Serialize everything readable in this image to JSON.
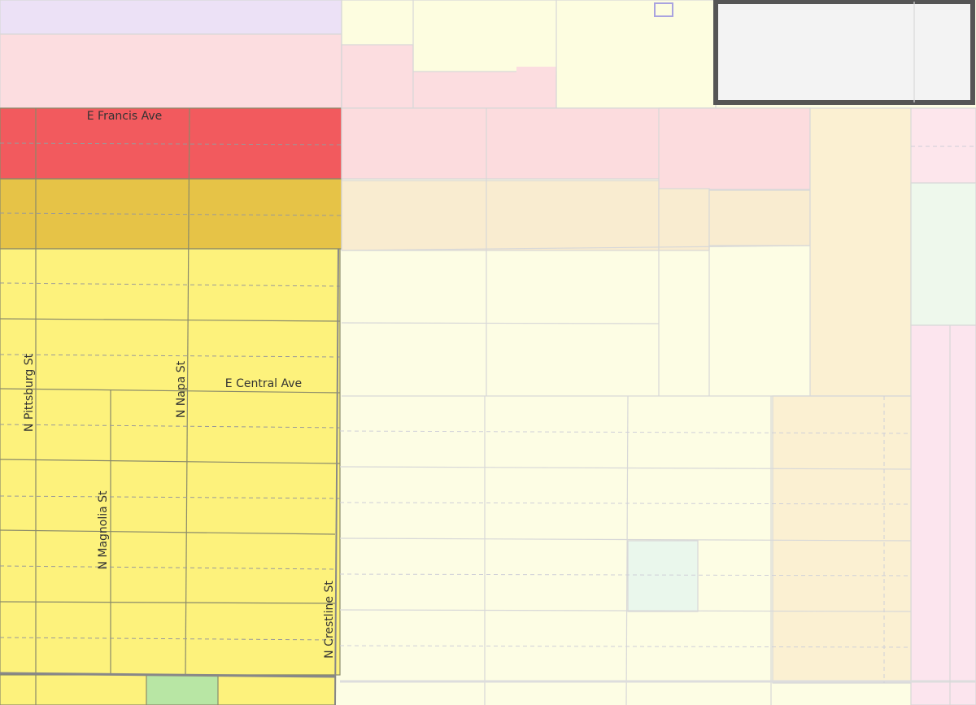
{
  "streets": {
    "francis": "E Francis Ave",
    "central": "E Central Ave",
    "pittsburg": "N Pittsburg St",
    "napa": "N Napa St",
    "magnolia": "N Magnolia St",
    "crestline": "N Crestline St"
  }
}
